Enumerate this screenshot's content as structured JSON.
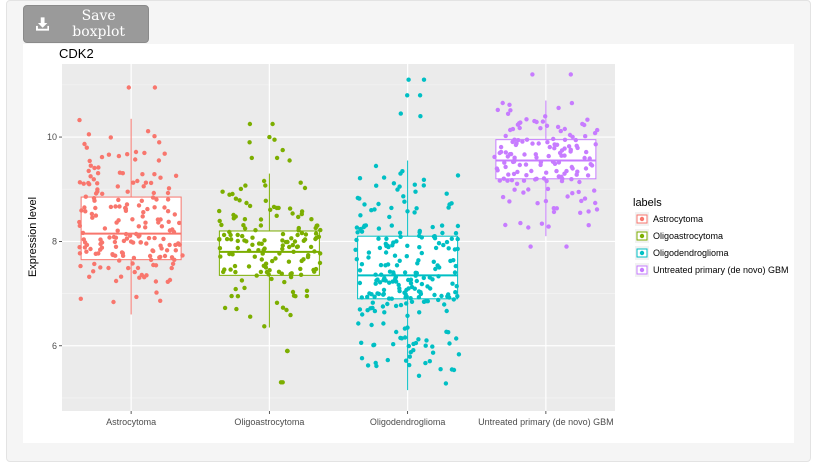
{
  "toolbar": {
    "save_label": "Save boxplot",
    "save_icon": "download-icon"
  },
  "chart_data": {
    "type": "boxplot",
    "title": "CDK2",
    "xlabel": "",
    "ylabel": "Expression level",
    "ylim": [
      4.75,
      11.4
    ],
    "yticks": [
      6,
      8,
      10
    ],
    "grid": true,
    "legend": {
      "title": "labels",
      "placement": "right"
    },
    "categories": [
      "Astrocytoma",
      "Oligoastrocytoma",
      "Oligodendroglioma",
      "Untreated primary (de novo) GBM"
    ],
    "series": [
      {
        "name": "Astrocytoma",
        "color": "#F8766D",
        "n": 190,
        "box": {
          "whisker_low": 6.6,
          "q1": 7.65,
          "median": 8.15,
          "q3": 8.85,
          "whisker_high": 10.35
        },
        "outliers": [
          10.95,
          10.95
        ]
      },
      {
        "name": "Oligoastrocytoma",
        "color": "#7CAE00",
        "n": 150,
        "box": {
          "whisker_low": 6.35,
          "q1": 7.35,
          "median": 7.8,
          "q3": 8.2,
          "whisker_high": 9.3
        },
        "outliers": [
          5.9,
          5.9,
          5.3,
          5.3,
          10.25,
          10.25,
          10.0,
          9.95,
          9.9,
          9.75,
          9.6,
          9.6,
          9.55
        ]
      },
      {
        "name": "Oligodendroglioma",
        "color": "#00BFC4",
        "n": 240,
        "box": {
          "whisker_low": 5.15,
          "q1": 6.9,
          "median": 7.35,
          "q3": 8.1,
          "whisker_high": 9.55
        },
        "outliers": [
          11.1,
          11.1,
          10.8,
          10.8,
          10.45,
          10.4
        ]
      },
      {
        "name": "Untreated primary (de novo) GBM",
        "color": "#C77CFF",
        "n": 150,
        "box": {
          "whisker_low": 8.1,
          "q1": 9.2,
          "median": 9.55,
          "q3": 9.95,
          "whisker_high": 10.7
        },
        "outliers": [
          11.2,
          11.2,
          7.9,
          7.9
        ]
      }
    ]
  }
}
